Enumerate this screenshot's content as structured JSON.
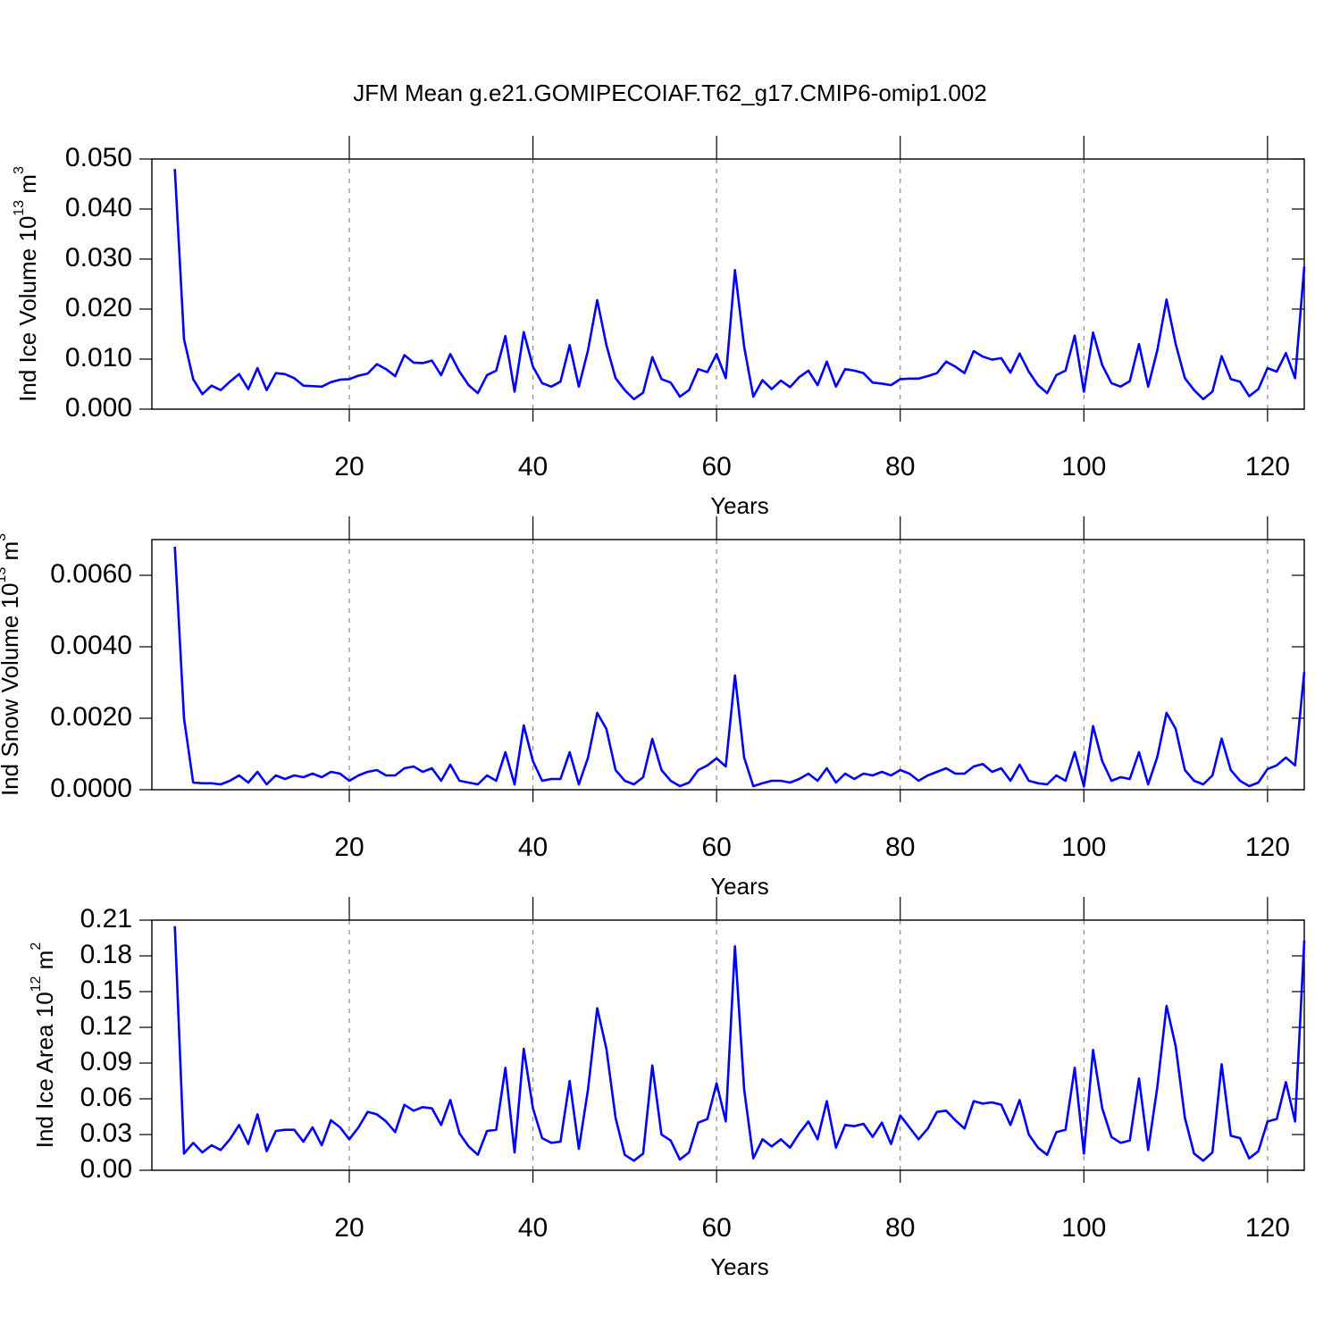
{
  "title": "JFM Mean g.e21.GOMIPECOIAF.T62_g17.CMIP6-omip1.002",
  "chart_data": [
    {
      "type": "line",
      "ylabel": [
        "Ind Ice Volume 10",
        "13",
        " m",
        "3"
      ],
      "xlabel": "Years",
      "color": "#0000ff",
      "grid": true,
      "xlim": [
        -1.5,
        124
      ],
      "xticks": [
        20,
        40,
        60,
        80,
        100,
        120
      ],
      "ylim": [
        0,
        0.05
      ],
      "yticks": [
        {
          "value": 0,
          "label": "0.000"
        },
        {
          "value": 0.01,
          "label": "0.010"
        },
        {
          "value": 0.02,
          "label": "0.020"
        },
        {
          "value": 0.03,
          "label": "0.030"
        },
        {
          "value": 0.04,
          "label": "0.040"
        },
        {
          "value": 0.05,
          "label": "0.050"
        }
      ],
      "x": [
        1,
        2,
        3,
        4,
        5,
        6,
        7,
        8,
        9,
        10,
        11,
        12,
        13,
        14,
        15,
        16,
        17,
        18,
        19,
        20,
        21,
        22,
        23,
        24,
        25,
        26,
        27,
        28,
        29,
        30,
        31,
        32,
        33,
        34,
        35,
        36,
        37,
        38,
        39,
        40,
        41,
        42,
        43,
        44,
        45,
        46,
        47,
        48,
        49,
        50,
        51,
        52,
        53,
        54,
        55,
        56,
        57,
        58,
        59,
        60,
        61,
        62,
        63,
        64,
        65,
        66,
        67,
        68,
        69,
        70,
        71,
        72,
        73,
        74,
        75,
        76,
        77,
        78,
        79,
        80,
        81,
        82,
        83,
        84,
        85,
        86,
        87,
        88,
        89,
        90,
        91,
        92,
        93,
        94,
        95,
        96,
        97,
        98,
        99,
        100,
        101,
        102,
        103,
        104,
        105,
        106,
        107,
        108,
        109,
        110,
        111,
        112,
        113,
        114,
        115,
        116,
        117,
        118,
        119,
        120,
        121,
        122,
        123,
        124
      ],
      "values": [
        0.048,
        0.014,
        0.006,
        0.003,
        0.0047,
        0.0038,
        0.0055,
        0.007,
        0.004,
        0.0082,
        0.0038,
        0.0072,
        0.007,
        0.0062,
        0.0047,
        0.0046,
        0.0045,
        0.0054,
        0.0059,
        0.006,
        0.0067,
        0.0071,
        0.009,
        0.008,
        0.0066,
        0.0108,
        0.0093,
        0.0092,
        0.0097,
        0.0068,
        0.011,
        0.0075,
        0.0048,
        0.0032,
        0.0068,
        0.0077,
        0.0146,
        0.0035,
        0.0154,
        0.0085,
        0.0052,
        0.0045,
        0.0055,
        0.0128,
        0.0045,
        0.0118,
        0.0218,
        0.0128,
        0.0062,
        0.0038,
        0.002,
        0.0033,
        0.0104,
        0.006,
        0.0053,
        0.0025,
        0.0038,
        0.008,
        0.0074,
        0.011,
        0.0062,
        0.0278,
        0.0125,
        0.0025,
        0.0058,
        0.004,
        0.0057,
        0.0044,
        0.0064,
        0.0077,
        0.0048,
        0.0095,
        0.0045,
        0.008,
        0.0077,
        0.0072,
        0.0053,
        0.0051,
        0.0048,
        0.006,
        0.0061,
        0.0061,
        0.0066,
        0.0072,
        0.0095,
        0.0085,
        0.0072,
        0.0116,
        0.0105,
        0.0099,
        0.0102,
        0.0073,
        0.0111,
        0.0075,
        0.0048,
        0.0032,
        0.0068,
        0.0077,
        0.0147,
        0.0035,
        0.0153,
        0.0088,
        0.0052,
        0.0045,
        0.0056,
        0.013,
        0.0045,
        0.0118,
        0.0219,
        0.013,
        0.0062,
        0.0038,
        0.002,
        0.0035,
        0.0106,
        0.006,
        0.0055,
        0.0026,
        0.004,
        0.0082,
        0.0075,
        0.0112,
        0.0062,
        0.0285
      ]
    },
    {
      "type": "line",
      "ylabel": [
        "Ind Snow Volume 10",
        "13",
        " m",
        "3"
      ],
      "xlabel": "Years",
      "color": "#0000ff",
      "grid": true,
      "xlim": [
        -1.5,
        124
      ],
      "xticks": [
        20,
        40,
        60,
        80,
        100,
        120
      ],
      "ylim": [
        0,
        0.007
      ],
      "yticks": [
        {
          "value": 0,
          "label": "0.0000"
        },
        {
          "value": 0.002,
          "label": "0.0020"
        },
        {
          "value": 0.004,
          "label": "0.0040"
        },
        {
          "value": 0.006,
          "label": "0.0060"
        }
      ],
      "x": [
        1,
        2,
        3,
        4,
        5,
        6,
        7,
        8,
        9,
        10,
        11,
        12,
        13,
        14,
        15,
        16,
        17,
        18,
        19,
        20,
        21,
        22,
        23,
        24,
        25,
        26,
        27,
        28,
        29,
        30,
        31,
        32,
        33,
        34,
        35,
        36,
        37,
        38,
        39,
        40,
        41,
        42,
        43,
        44,
        45,
        46,
        47,
        48,
        49,
        50,
        51,
        52,
        53,
        54,
        55,
        56,
        57,
        58,
        59,
        60,
        61,
        62,
        63,
        64,
        65,
        66,
        67,
        68,
        69,
        70,
        71,
        72,
        73,
        74,
        75,
        76,
        77,
        78,
        79,
        80,
        81,
        82,
        83,
        84,
        85,
        86,
        87,
        88,
        89,
        90,
        91,
        92,
        93,
        94,
        95,
        96,
        97,
        98,
        99,
        100,
        101,
        102,
        103,
        104,
        105,
        106,
        107,
        108,
        109,
        110,
        111,
        112,
        113,
        114,
        115,
        116,
        117,
        118,
        119,
        120,
        121,
        122,
        123,
        124
      ],
      "values": [
        0.0068,
        0.002,
        0.0002,
        0.00018,
        0.00018,
        0.00015,
        0.00025,
        0.0004,
        0.0002,
        0.0005,
        0.00015,
        0.0004,
        0.0003,
        0.0004,
        0.00035,
        0.00045,
        0.00035,
        0.0005,
        0.00045,
        0.00025,
        0.0004,
        0.0005,
        0.00055,
        0.0004,
        0.0004,
        0.0006,
        0.00065,
        0.0005,
        0.0006,
        0.00025,
        0.0007,
        0.00025,
        0.0002,
        0.00015,
        0.0004,
        0.00025,
        0.00105,
        0.00015,
        0.0018,
        0.0008,
        0.00025,
        0.0003,
        0.0003,
        0.00105,
        0.00015,
        0.0009,
        0.00215,
        0.0017,
        0.00055,
        0.00025,
        0.00015,
        0.00035,
        0.00142,
        0.00055,
        0.00025,
        0.0001,
        0.0002,
        0.00055,
        0.00068,
        0.00088,
        0.00065,
        0.0032,
        0.0009,
        0.0001,
        0.00018,
        0.00025,
        0.00025,
        0.0002,
        0.0003,
        0.00045,
        0.00025,
        0.0006,
        0.0002,
        0.00045,
        0.0003,
        0.00045,
        0.0004,
        0.0005,
        0.0004,
        0.00055,
        0.00045,
        0.00025,
        0.0004,
        0.0005,
        0.0006,
        0.00045,
        0.00045,
        0.00065,
        0.00072,
        0.0005,
        0.0006,
        0.00025,
        0.0007,
        0.00025,
        0.00018,
        0.00015,
        0.0004,
        0.00025,
        0.00105,
        0.0001,
        0.00178,
        0.0008,
        0.00025,
        0.00035,
        0.0003,
        0.00105,
        0.00015,
        0.00092,
        0.00215,
        0.0017,
        0.00055,
        0.00025,
        0.00015,
        0.0004,
        0.00143,
        0.00055,
        0.00025,
        0.0001,
        0.0002,
        0.00058,
        0.00068,
        0.0009,
        0.00068,
        0.0033
      ]
    },
    {
      "type": "line",
      "ylabel": [
        "Ind Ice Area 10",
        "12",
        " m",
        "2"
      ],
      "xlabel": "Years",
      "color": "#0000ff",
      "grid": true,
      "xlim": [
        -1.5,
        124
      ],
      "xticks": [
        20,
        40,
        60,
        80,
        100,
        120
      ],
      "ylim": [
        0,
        0.21
      ],
      "yticks": [
        {
          "value": 0,
          "label": "0.00"
        },
        0.03,
        0.06,
        0.09,
        0.12,
        0.15,
        0.18,
        0.21
      ],
      "x": [
        1,
        2,
        3,
        4,
        5,
        6,
        7,
        8,
        9,
        10,
        11,
        12,
        13,
        14,
        15,
        16,
        17,
        18,
        19,
        20,
        21,
        22,
        23,
        24,
        25,
        26,
        27,
        28,
        29,
        30,
        31,
        32,
        33,
        34,
        35,
        36,
        37,
        38,
        39,
        40,
        41,
        42,
        43,
        44,
        45,
        46,
        47,
        48,
        49,
        50,
        51,
        52,
        53,
        54,
        55,
        56,
        57,
        58,
        59,
        60,
        61,
        62,
        63,
        64,
        65,
        66,
        67,
        68,
        69,
        70,
        71,
        72,
        73,
        74,
        75,
        76,
        77,
        78,
        79,
        80,
        81,
        82,
        83,
        84,
        85,
        86,
        87,
        88,
        89,
        90,
        91,
        92,
        93,
        94,
        95,
        96,
        97,
        98,
        99,
        100,
        101,
        102,
        103,
        104,
        105,
        106,
        107,
        108,
        109,
        110,
        111,
        112,
        113,
        114,
        115,
        116,
        117,
        118,
        119,
        120,
        121,
        122,
        123,
        124
      ],
      "values": [
        0.205,
        0.014,
        0.023,
        0.015,
        0.021,
        0.017,
        0.026,
        0.038,
        0.022,
        0.047,
        0.016,
        0.033,
        0.034,
        0.034,
        0.024,
        0.036,
        0.021,
        0.042,
        0.036,
        0.026,
        0.036,
        0.049,
        0.047,
        0.041,
        0.032,
        0.055,
        0.05,
        0.053,
        0.052,
        0.038,
        0.059,
        0.031,
        0.02,
        0.013,
        0.033,
        0.034,
        0.086,
        0.015,
        0.102,
        0.052,
        0.027,
        0.023,
        0.024,
        0.075,
        0.018,
        0.068,
        0.136,
        0.102,
        0.044,
        0.013,
        0.008,
        0.014,
        0.088,
        0.03,
        0.025,
        0.009,
        0.015,
        0.04,
        0.043,
        0.073,
        0.041,
        0.188,
        0.068,
        0.01,
        0.026,
        0.02,
        0.026,
        0.019,
        0.031,
        0.041,
        0.026,
        0.058,
        0.019,
        0.038,
        0.037,
        0.039,
        0.028,
        0.04,
        0.022,
        0.046,
        0.036,
        0.026,
        0.035,
        0.049,
        0.05,
        0.042,
        0.035,
        0.058,
        0.056,
        0.057,
        0.055,
        0.038,
        0.059,
        0.03,
        0.019,
        0.013,
        0.032,
        0.034,
        0.086,
        0.014,
        0.101,
        0.052,
        0.028,
        0.023,
        0.025,
        0.077,
        0.017,
        0.07,
        0.138,
        0.104,
        0.044,
        0.014,
        0.008,
        0.015,
        0.089,
        0.029,
        0.027,
        0.01,
        0.016,
        0.041,
        0.043,
        0.074,
        0.041,
        0.193
      ]
    }
  ]
}
